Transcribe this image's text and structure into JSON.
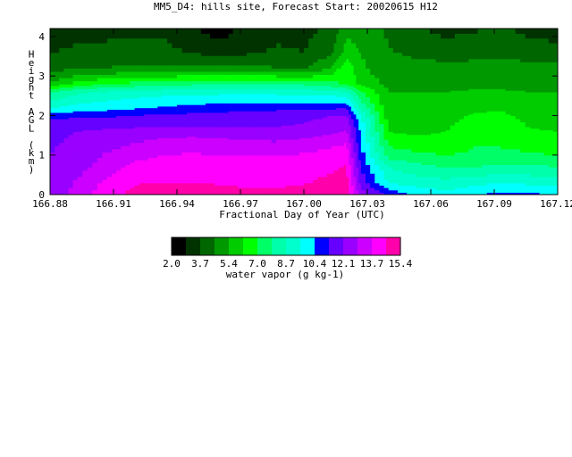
{
  "chart_data": {
    "type": "heatmap",
    "title": "MM5_D4: hills site,  Forecast Start: 20020615 H12",
    "xlabel": "Fractional Day of Year (UTC)",
    "ylabel": "Height AGL (km)",
    "xlim": [
      166.88,
      167.12
    ],
    "ylim": [
      0,
      4.2
    ],
    "x_ticks": [
      "166.88",
      "166.91",
      "166.94",
      "166.97",
      "167.00",
      "167.03",
      "167.06",
      "167.09",
      "167.12"
    ],
    "y_ticks": [
      "0",
      "1",
      "2",
      "3",
      "4"
    ],
    "x": [
      166.88,
      166.893,
      166.907,
      166.92,
      166.933,
      166.947,
      166.96,
      166.973,
      166.987,
      167.0,
      167.013,
      167.02,
      167.027,
      167.04,
      167.053,
      167.067,
      167.08,
      167.093,
      167.107,
      167.12
    ],
    "heights": [
      0.0,
      0.3,
      0.7,
      1.0,
      1.4,
      1.6,
      1.8,
      2.0,
      2.2,
      2.4,
      2.6,
      2.8,
      3.2,
      3.6,
      4.2
    ],
    "values": [
      [
        12.5,
        13.2,
        14.2,
        14.8,
        15.0,
        15.0,
        14.9,
        14.8,
        14.8,
        14.9,
        15.2,
        15.0,
        12.5,
        11.0,
        10.3,
        9.8,
        10.4,
        10.6,
        10.6,
        10.4
      ],
      [
        12.3,
        13.0,
        13.9,
        14.5,
        14.6,
        14.6,
        14.5,
        14.4,
        14.4,
        14.5,
        14.8,
        15.0,
        11.8,
        9.5,
        9.2,
        9.0,
        9.3,
        9.6,
        9.4,
        9.2
      ],
      [
        12.2,
        12.6,
        13.3,
        13.9,
        14.0,
        14.1,
        14.0,
        14.0,
        14.0,
        14.1,
        14.4,
        14.6,
        11.2,
        8.7,
        8.2,
        7.8,
        7.9,
        8.0,
        8.0,
        7.9
      ],
      [
        12.1,
        12.4,
        13.0,
        13.5,
        13.7,
        13.8,
        13.7,
        13.7,
        13.7,
        13.8,
        14.1,
        14.3,
        10.8,
        7.5,
        7.2,
        7.0,
        7.1,
        7.2,
        7.1,
        7.0
      ],
      [
        12.0,
        12.2,
        12.5,
        12.7,
        13.0,
        13.2,
        13.0,
        12.9,
        12.8,
        13.0,
        13.3,
        13.5,
        10.4,
        6.6,
        6.4,
        6.5,
        6.9,
        6.8,
        6.6,
        6.5
      ],
      [
        12.0,
        12.1,
        12.2,
        12.3,
        12.3,
        12.3,
        12.3,
        12.3,
        12.3,
        12.4,
        12.7,
        13.0,
        10.2,
        6.2,
        6.0,
        6.2,
        6.8,
        6.7,
        6.3,
        6.2
      ],
      [
        11.8,
        11.9,
        11.9,
        11.9,
        11.9,
        12.0,
        12.0,
        12.0,
        12.0,
        12.1,
        12.4,
        12.7,
        10.0,
        6.0,
        5.8,
        6.0,
        6.6,
        6.6,
        6.1,
        6.0
      ],
      [
        10.9,
        11.0,
        11.1,
        11.3,
        11.4,
        11.5,
        11.6,
        11.7,
        11.8,
        11.9,
        12.1,
        12.2,
        9.5,
        5.8,
        5.6,
        5.8,
        6.3,
        6.4,
        5.9,
        5.8
      ],
      [
        9.5,
        9.9,
        10.1,
        10.3,
        10.5,
        10.7,
        10.8,
        10.9,
        11.0,
        11.0,
        11.1,
        11.2,
        8.5,
        5.6,
        5.5,
        5.6,
        6.0,
        6.1,
        5.7,
        5.6
      ],
      [
        8.6,
        9.2,
        9.5,
        9.7,
        9.9,
        10.0,
        10.1,
        10.1,
        10.1,
        10.1,
        10.1,
        10.0,
        7.8,
        5.5,
        5.4,
        5.5,
        5.8,
        5.9,
        5.6,
        5.5
      ],
      [
        7.9,
        8.5,
        8.9,
        9.1,
        9.2,
        9.3,
        9.3,
        9.3,
        9.3,
        9.2,
        9.1,
        8.8,
        7.2,
        5.4,
        5.4,
        5.4,
        5.5,
        5.5,
        5.4,
        5.4
      ],
      [
        5.6,
        6.6,
        7.1,
        7.3,
        7.5,
        7.7,
        7.8,
        7.8,
        7.8,
        7.7,
        7.3,
        6.9,
        6.0,
        5.2,
        5.2,
        5.2,
        5.2,
        5.2,
        5.2,
        5.2
      ],
      [
        4.2,
        4.5,
        4.6,
        4.7,
        4.8,
        4.8,
        4.7,
        4.8,
        4.6,
        4.4,
        5.6,
        6.8,
        5.6,
        4.8,
        4.8,
        4.8,
        4.8,
        4.8,
        4.8,
        4.8
      ],
      [
        3.7,
        3.8,
        3.9,
        3.9,
        3.9,
        3.7,
        3.3,
        3.6,
        3.8,
        3.7,
        4.3,
        5.8,
        5.4,
        4.6,
        4.4,
        4.2,
        4.3,
        4.4,
        4.2,
        4.1
      ],
      [
        3.4,
        3.5,
        3.5,
        3.6,
        3.6,
        3.0,
        2.4,
        3.2,
        3.5,
        3.5,
        3.9,
        5.2,
        5.0,
        4.4,
        3.8,
        3.4,
        3.6,
        3.8,
        3.4,
        3.2
      ]
    ],
    "colorbar": {
      "label": "water vapor (g kg-1)",
      "tick_labels": [
        "2.0",
        "3.7",
        "5.4",
        "7.0",
        "8.7",
        "10.4",
        "12.1",
        "13.7",
        "15.4"
      ],
      "levels": [
        2.0,
        2.84,
        3.7,
        4.54,
        5.4,
        6.2,
        7.0,
        7.85,
        8.7,
        9.54,
        10.4,
        11.24,
        12.1,
        12.9,
        13.7,
        14.55,
        15.4
      ],
      "colors": [
        "#000000",
        "#003300",
        "#006600",
        "#009900",
        "#00cc00",
        "#00ff00",
        "#00ff66",
        "#00ffaa",
        "#00ffcc",
        "#00ffff",
        "#0000ff",
        "#6600ff",
        "#9900ff",
        "#cc00ff",
        "#ff00ff",
        "#ff00aa"
      ]
    }
  }
}
